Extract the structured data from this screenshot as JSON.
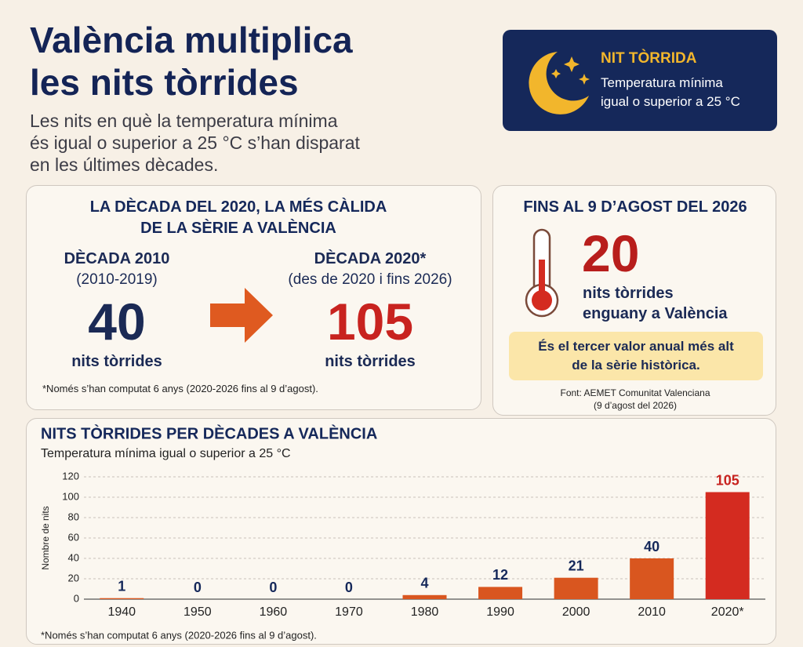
{
  "header": {
    "title_lines": [
      "València multiplica",
      "les nits tòrrides"
    ],
    "subtitle_lines": [
      "Les nits en què la temperatura mínima",
      "és igual o superior a 25 °C s’han disparat",
      "en les últimes dècades."
    ]
  },
  "badge": {
    "title": "NIT TÒRRIDA",
    "text_lines": [
      "Temperatura mínima",
      "igual o superior a 25 °C"
    ]
  },
  "comparison": {
    "title_lines": [
      "LA DÈCADA DEL 2020, LA MÉS CÀLIDA",
      "DE LA SÈRIE A VALÈNCIA"
    ],
    "left": {
      "label": "DÈCADA 2010",
      "period": "(2010-2019)",
      "value": 40,
      "unit": "nits tòrrides"
    },
    "right": {
      "label": "DÈCADA 2020*",
      "period": "(des de 2020 i fins 2026)",
      "value": 105,
      "unit": "nits tòrrides"
    },
    "note": "*Només s’han computat 6 anys (2020-2026 fins al 9 d’agost)."
  },
  "current": {
    "title": "FINS AL 9 D’AGOST DEL 2026",
    "value": 20,
    "text_lines": [
      "nits tòrrides",
      "enguany a València"
    ],
    "highlight_lines": [
      "És el tercer valor anual més alt",
      "de la sèrie històrica."
    ],
    "source_lines": [
      "Font: AEMET Comunitat Valenciana",
      "(9 d’agost del 2026)"
    ]
  },
  "chart_data": {
    "type": "bar",
    "title": "NITS TÒRRIDES PER DÈCADES A VALÈNCIA",
    "subtitle": "Temperatura mínima igual o superior a 25 °C",
    "y_label": "Nombre de nits",
    "categories": [
      "1940",
      "1950",
      "1960",
      "1970",
      "1980",
      "1990",
      "2000",
      "2010",
      "2020*"
    ],
    "values": [
      1,
      0,
      0,
      0,
      4,
      12,
      21,
      40,
      105
    ],
    "colors": [
      "#d9561f",
      "#d9561f",
      "#d9561f",
      "#d9561f",
      "#d9561f",
      "#d9561f",
      "#d9561f",
      "#d9561f",
      "#d42b20"
    ],
    "ylim": [
      0,
      120
    ],
    "yticks": [
      0,
      20,
      40,
      60,
      80,
      100,
      120
    ],
    "grid": true,
    "note": "*Només s’han computat 6 anys (2020-2026 fins al 9 d’agost)."
  }
}
